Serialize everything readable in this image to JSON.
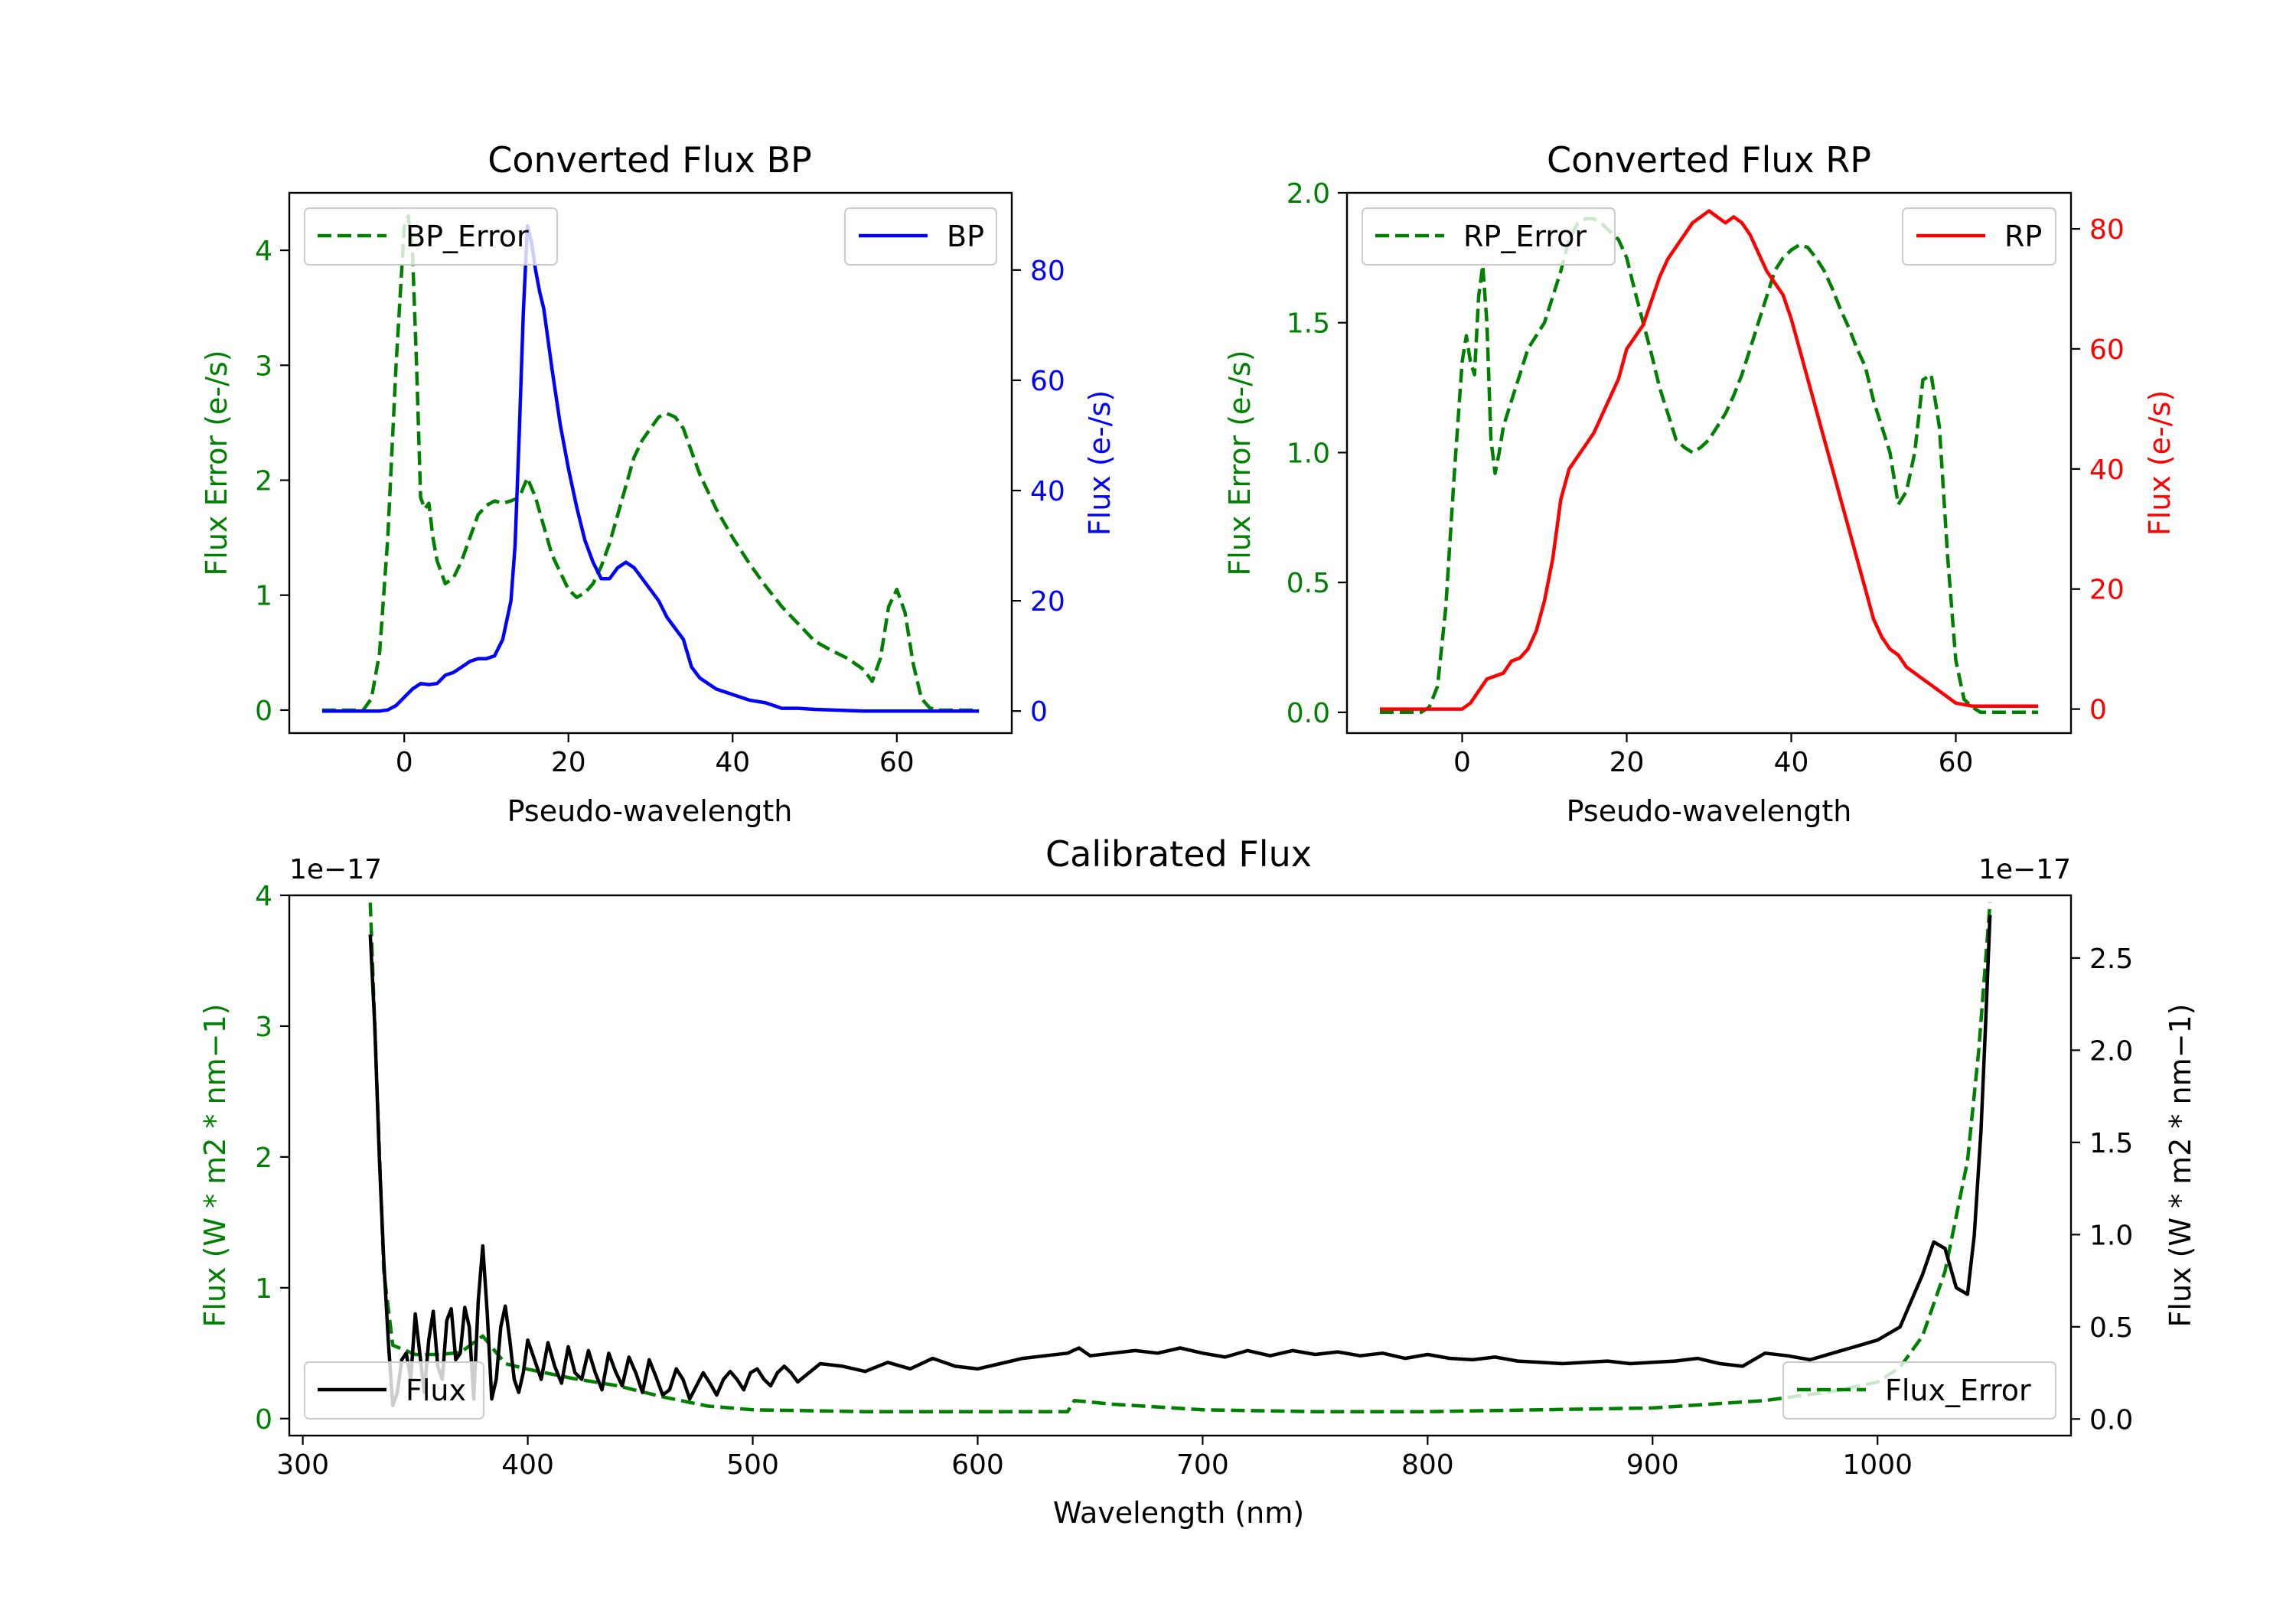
{
  "colors": {
    "error": "#008000",
    "bp": "#0000ff",
    "rp": "#ff0000",
    "flux": "#000000"
  },
  "chart_data": [
    {
      "id": "bp",
      "type": "line",
      "title": "Converted Flux BP",
      "xlabel": "Pseudo-wavelength",
      "ylabel_left": "Flux Error (e-/s)",
      "ylabel_right": "Flux (e-/s)",
      "xlim": [
        -14,
        74
      ],
      "xticks": [
        0,
        20,
        40,
        60
      ],
      "ylim_left": [
        -0.2,
        4.5
      ],
      "yticks_left": [
        0,
        1,
        2,
        3,
        4
      ],
      "ylim_right": [
        -4,
        94
      ],
      "yticks_right": [
        0,
        20,
        40,
        60,
        80
      ],
      "legend_left": "BP_Error",
      "legend_right": "BP",
      "series": [
        {
          "name": "BP_Error",
          "axis": "left",
          "style": "dashed",
          "color": "#008000",
          "x": [
            -10,
            -5,
            -4,
            -3,
            -2,
            -1,
            0,
            0.5,
            1,
            1.5,
            2,
            2.5,
            3,
            3.5,
            4,
            5,
            6,
            7,
            8,
            9,
            10,
            11,
            12,
            13,
            14,
            15,
            16,
            17,
            18,
            19,
            20,
            21,
            22,
            23,
            24,
            25,
            26,
            27,
            28,
            29,
            30,
            31,
            32,
            33,
            34,
            35,
            36,
            38,
            40,
            42,
            44,
            46,
            48,
            50,
            52,
            54,
            56,
            57,
            58,
            59,
            60,
            61,
            62,
            63,
            64,
            65,
            70
          ],
          "y": [
            0,
            0,
            0.1,
            0.5,
            1.5,
            3.0,
            4.2,
            4.3,
            4.0,
            3.0,
            1.85,
            1.75,
            1.8,
            1.5,
            1.3,
            1.1,
            1.15,
            1.3,
            1.5,
            1.7,
            1.78,
            1.82,
            1.8,
            1.82,
            1.85,
            2.02,
            1.85,
            1.6,
            1.35,
            1.2,
            1.05,
            0.98,
            1.02,
            1.1,
            1.25,
            1.45,
            1.7,
            1.95,
            2.2,
            2.35,
            2.45,
            2.55,
            2.58,
            2.55,
            2.45,
            2.25,
            2.05,
            1.75,
            1.5,
            1.28,
            1.08,
            0.9,
            0.75,
            0.6,
            0.52,
            0.45,
            0.35,
            0.25,
            0.45,
            0.9,
            1.05,
            0.85,
            0.4,
            0.1,
            0.02,
            0,
            0
          ]
        },
        {
          "name": "BP",
          "axis": "right",
          "style": "solid",
          "color": "#0000ff",
          "x": [
            -10,
            -5,
            -3,
            -2,
            -1,
            0,
            1,
            2,
            3,
            4,
            5,
            6,
            7,
            8,
            9,
            10,
            11,
            12,
            13,
            13.5,
            14,
            14.5,
            15,
            15.5,
            16,
            16.5,
            17,
            18,
            19,
            20,
            21,
            22,
            23,
            24,
            25,
            26,
            27,
            28,
            29,
            30,
            31,
            32,
            33,
            34,
            35,
            36,
            37,
            38,
            40,
            42,
            44,
            46,
            48,
            50,
            52,
            54,
            56,
            58,
            60,
            62,
            65,
            70
          ],
          "y": [
            0,
            0,
            0,
            0.2,
            1,
            2.5,
            4,
            5,
            4.8,
            5,
            6.5,
            7,
            8,
            9,
            9.5,
            9.5,
            10,
            13,
            20,
            30,
            50,
            72,
            88,
            85,
            80,
            76,
            73,
            62,
            52,
            44,
            37,
            31,
            27,
            24,
            24,
            26,
            27,
            26,
            24,
            22,
            20,
            17,
            15,
            13,
            8,
            6,
            5,
            4,
            3,
            2,
            1.5,
            0.5,
            0.5,
            0.3,
            0.2,
            0.1,
            0,
            0,
            0,
            0,
            0,
            0
          ]
        }
      ]
    },
    {
      "id": "rp",
      "type": "line",
      "title": "Converted Flux RP",
      "xlabel": "Pseudo-wavelength",
      "ylabel_left": "Flux Error (e-/s)",
      "ylabel_right": "Flux (e-/s)",
      "xlim": [
        -14,
        74
      ],
      "xticks": [
        0,
        20,
        40,
        60
      ],
      "ylim_left": [
        -0.08,
        2.0
      ],
      "yticks_left": [
        0.0,
        0.5,
        1.0,
        1.5,
        2.0
      ],
      "ylim_right": [
        -4,
        86
      ],
      "yticks_right": [
        0,
        20,
        40,
        60,
        80
      ],
      "legend_left": "RP_Error",
      "legend_right": "RP",
      "series": [
        {
          "name": "RP_Error",
          "axis": "left",
          "style": "dashed",
          "color": "#008000",
          "x": [
            -10,
            -5,
            -4,
            -3,
            -2,
            -1,
            0,
            0.5,
            1,
            1.5,
            2,
            2.5,
            3,
            3.5,
            4,
            4.5,
            5,
            6,
            7,
            8,
            9,
            10,
            11,
            12,
            13,
            14,
            15,
            16,
            17,
            18,
            19,
            20,
            21,
            22,
            23,
            24,
            25,
            26,
            27,
            28,
            29,
            30,
            31,
            32,
            33,
            34,
            35,
            36,
            37,
            38,
            39,
            40,
            41,
            42,
            43,
            44,
            45,
            46,
            47,
            48,
            49,
            50,
            51,
            52,
            53,
            54,
            55,
            56,
            57,
            58,
            59,
            60,
            61,
            62,
            63,
            64,
            65,
            70
          ],
          "y": [
            0,
            0,
            0.02,
            0.1,
            0.4,
            0.9,
            1.35,
            1.45,
            1.35,
            1.3,
            1.6,
            1.72,
            1.5,
            1.05,
            0.92,
            1.0,
            1.1,
            1.2,
            1.3,
            1.4,
            1.45,
            1.5,
            1.6,
            1.7,
            1.82,
            1.88,
            1.9,
            1.9,
            1.88,
            1.85,
            1.82,
            1.75,
            1.62,
            1.5,
            1.38,
            1.25,
            1.15,
            1.05,
            1.02,
            1.0,
            1.02,
            1.05,
            1.1,
            1.15,
            1.22,
            1.3,
            1.4,
            1.5,
            1.6,
            1.7,
            1.75,
            1.78,
            1.8,
            1.79,
            1.75,
            1.7,
            1.63,
            1.55,
            1.48,
            1.4,
            1.33,
            1.2,
            1.1,
            1.0,
            0.8,
            0.85,
            1.0,
            1.28,
            1.3,
            1.1,
            0.6,
            0.2,
            0.05,
            0.02,
            0,
            0,
            0,
            0
          ]
        },
        {
          "name": "RP",
          "axis": "right",
          "style": "solid",
          "color": "#ff0000",
          "x": [
            -10,
            -5,
            -3,
            -2,
            -1,
            0,
            1,
            2,
            3,
            4,
            5,
            6,
            7,
            8,
            9,
            10,
            11,
            12,
            13,
            14,
            15,
            16,
            17,
            18,
            19,
            20,
            21,
            22,
            23,
            24,
            25,
            26,
            27,
            28,
            29,
            30,
            31,
            32,
            33,
            34,
            35,
            36,
            37,
            38,
            39,
            40,
            41,
            42,
            43,
            44,
            45,
            46,
            47,
            48,
            49,
            50,
            51,
            52,
            53,
            54,
            55,
            56,
            57,
            58,
            59,
            60,
            62,
            65,
            70
          ],
          "y": [
            0,
            0,
            0,
            0,
            0,
            0,
            1,
            3,
            5,
            5.5,
            6,
            8,
            8.5,
            10,
            13,
            18,
            25,
            35,
            40,
            42,
            44,
            46,
            49,
            52,
            55,
            60,
            62,
            64,
            68,
            72,
            75,
            77,
            79,
            81,
            82,
            83,
            82,
            81,
            82,
            81,
            79,
            76,
            73,
            71,
            69,
            65,
            60,
            55,
            50,
            45,
            40,
            35,
            30,
            25,
            20,
            15,
            12,
            10,
            9,
            7,
            6,
            5,
            4,
            3,
            2,
            1,
            0.5,
            0.5,
            0.5
          ]
        }
      ]
    },
    {
      "id": "calibrated",
      "type": "line",
      "title": "Calibrated Flux",
      "xlabel": "Wavelength (nm)",
      "ylabel_left": "Flux (W * m2 * nm−1)",
      "ylabel_right": "Flux (W * m2 * nm−1)",
      "offset_left": "1e−17",
      "offset_right": "1e−17",
      "xlim": [
        294,
        1086
      ],
      "xticks": [
        300,
        400,
        500,
        600,
        700,
        800,
        900,
        1000
      ],
      "ylim_left": [
        -0.13,
        4.0
      ],
      "yticks_left": [
        0,
        1,
        2,
        3,
        4
      ],
      "ylim_right": [
        -0.09,
        2.84
      ],
      "yticks_right": [
        0.0,
        0.5,
        1.0,
        1.5,
        2.0,
        2.5
      ],
      "legend_left": "Flux",
      "legend_right": "Flux_Error",
      "series": [
        {
          "name": "Flux_Error",
          "axis": "right",
          "style": "dashed",
          "color": "#008000",
          "x": [
            330,
            333,
            336,
            340,
            350,
            360,
            370,
            380,
            390,
            400,
            420,
            440,
            460,
            480,
            500,
            550,
            600,
            640,
            643,
            660,
            700,
            750,
            800,
            850,
            900,
            950,
            980,
            1000,
            1010,
            1020,
            1030,
            1040,
            1045,
            1050
          ],
          "y": [
            2.8,
            1.8,
            0.8,
            0.4,
            0.35,
            0.35,
            0.36,
            0.45,
            0.3,
            0.27,
            0.22,
            0.18,
            0.12,
            0.07,
            0.05,
            0.04,
            0.04,
            0.04,
            0.1,
            0.08,
            0.05,
            0.04,
            0.04,
            0.05,
            0.06,
            0.1,
            0.15,
            0.2,
            0.28,
            0.45,
            0.8,
            1.4,
            2.0,
            2.8
          ]
        },
        {
          "name": "Flux",
          "axis": "left",
          "style": "solid",
          "color": "#000000",
          "x": [
            330,
            332,
            334,
            336,
            338,
            340,
            342,
            344,
            346,
            348,
            350,
            352,
            354,
            356,
            358,
            360,
            362,
            364,
            366,
            368,
            370,
            372,
            374,
            376,
            378,
            380,
            382,
            384,
            386,
            388,
            390,
            392,
            394,
            396,
            398,
            400,
            403,
            406,
            409,
            412,
            415,
            418,
            421,
            424,
            427,
            430,
            433,
            436,
            439,
            442,
            445,
            448,
            451,
            454,
            457,
            460,
            463,
            466,
            469,
            472,
            475,
            478,
            481,
            484,
            487,
            490,
            493,
            496,
            499,
            502,
            505,
            508,
            511,
            514,
            517,
            520,
            530,
            540,
            550,
            560,
            570,
            580,
            590,
            600,
            610,
            620,
            630,
            640,
            645,
            650,
            660,
            670,
            680,
            690,
            700,
            710,
            720,
            730,
            740,
            750,
            760,
            770,
            780,
            790,
            800,
            810,
            820,
            830,
            840,
            850,
            860,
            870,
            880,
            890,
            900,
            910,
            920,
            930,
            940,
            950,
            960,
            970,
            980,
            990,
            1000,
            1010,
            1020,
            1025,
            1030,
            1035,
            1040,
            1043,
            1046,
            1048,
            1050
          ],
          "y": [
            3.7,
            3.0,
            2.0,
            1.2,
            0.6,
            0.1,
            0.2,
            0.45,
            0.5,
            0.3,
            0.8,
            0.5,
            0.2,
            0.6,
            0.82,
            0.4,
            0.3,
            0.75,
            0.84,
            0.45,
            0.5,
            0.85,
            0.7,
            0.15,
            0.9,
            1.32,
            0.8,
            0.15,
            0.3,
            0.7,
            0.86,
            0.6,
            0.3,
            0.2,
            0.35,
            0.6,
            0.45,
            0.3,
            0.58,
            0.4,
            0.27,
            0.55,
            0.35,
            0.3,
            0.52,
            0.35,
            0.22,
            0.5,
            0.36,
            0.25,
            0.47,
            0.35,
            0.2,
            0.45,
            0.32,
            0.18,
            0.22,
            0.38,
            0.3,
            0.15,
            0.25,
            0.35,
            0.27,
            0.18,
            0.3,
            0.36,
            0.3,
            0.22,
            0.35,
            0.38,
            0.3,
            0.25,
            0.35,
            0.4,
            0.35,
            0.28,
            0.42,
            0.4,
            0.36,
            0.43,
            0.38,
            0.46,
            0.4,
            0.38,
            0.42,
            0.46,
            0.48,
            0.5,
            0.54,
            0.48,
            0.5,
            0.52,
            0.5,
            0.54,
            0.5,
            0.47,
            0.52,
            0.48,
            0.52,
            0.49,
            0.51,
            0.48,
            0.5,
            0.46,
            0.49,
            0.46,
            0.45,
            0.47,
            0.44,
            0.43,
            0.42,
            0.43,
            0.44,
            0.42,
            0.43,
            0.44,
            0.46,
            0.42,
            0.4,
            0.5,
            0.48,
            0.45,
            0.5,
            0.55,
            0.6,
            0.7,
            1.1,
            1.35,
            1.3,
            1.0,
            0.95,
            1.4,
            2.2,
            3.0,
            3.85
          ]
        }
      ]
    }
  ]
}
